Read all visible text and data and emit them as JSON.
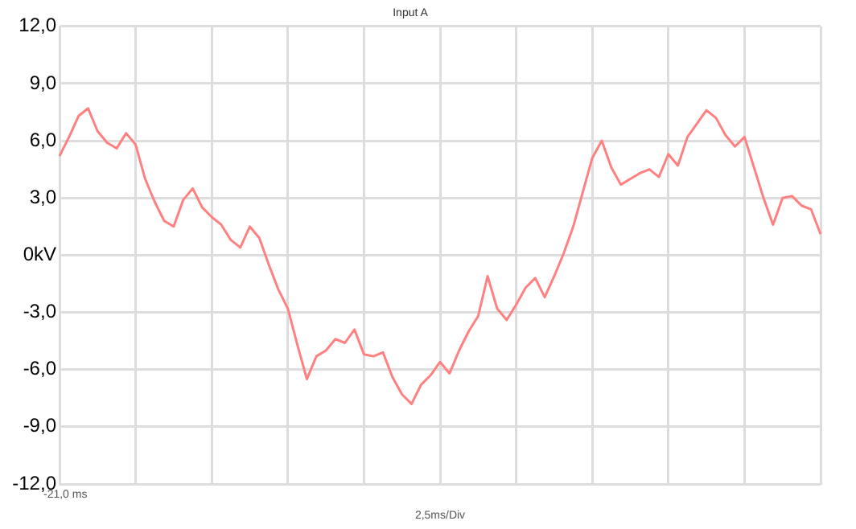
{
  "chart_data": {
    "type": "line",
    "title": "Input A",
    "xlabel": "2,5ms/Div",
    "categories": [
      null,
      null,
      null,
      null,
      null,
      null,
      null,
      null,
      null,
      null,
      null,
      null,
      null,
      null,
      null,
      null,
      null,
      null,
      null,
      null,
      null,
      null,
      null,
      null,
      null,
      null,
      null,
      null,
      null,
      null,
      null,
      null,
      null,
      null,
      null,
      null,
      null,
      null,
      null,
      null,
      null,
      null,
      null,
      null,
      null,
      null,
      null,
      null,
      null,
      null,
      null,
      null,
      null,
      null,
      null,
      null,
      null,
      null,
      null,
      null,
      null,
      null,
      null,
      null,
      null,
      null,
      null,
      null,
      null,
      null,
      null,
      null,
      null,
      null,
      null,
      null,
      null,
      null,
      null,
      null,
      null
    ],
    "series": [
      {
        "color": "#ff8080",
        "values": [
          5.2,
          6.2,
          7.3,
          7.7,
          6.5,
          5.9,
          5.6,
          6.4,
          5.8,
          4.0,
          2.8,
          1.8,
          1.5,
          2.9,
          3.5,
          2.5,
          2.0,
          1.6,
          0.8,
          0.4,
          1.5,
          0.9,
          -0.5,
          -1.8,
          -2.8,
          -4.7,
          -6.5,
          -5.3,
          -5.0,
          -4.4,
          -4.6,
          -3.9,
          -5.2,
          -5.3,
          -5.1,
          -6.4,
          -7.3,
          -7.8,
          -6.8,
          -6.3,
          -5.6,
          -6.2,
          -5.0,
          -4.0,
          -3.2,
          -1.1,
          -2.8,
          -3.4,
          -2.6,
          -1.7,
          -1.2,
          -2.2,
          -1.1,
          0.1,
          1.5,
          3.3,
          5.1,
          6.0,
          4.6,
          3.7,
          4.0,
          4.3,
          4.5,
          4.1,
          5.3,
          4.7,
          6.2,
          6.9,
          7.6,
          7.2,
          6.3,
          5.7,
          6.2,
          4.6,
          3.0,
          1.6,
          3.0,
          3.1,
          2.6,
          2.4,
          1.1
        ]
      }
    ],
    "ylim": [
      -12.0,
      12.0
    ],
    "yticks": [
      {
        "value": -12,
        "label": "-12,0"
      },
      {
        "value": -9,
        "label": "-9,0"
      },
      {
        "value": -6,
        "label": "-6,0"
      },
      {
        "value": -3,
        "label": "-3,0"
      },
      {
        "value": 0,
        "label": "0kV"
      },
      {
        "value": 3,
        "label": "3,0"
      },
      {
        "value": 6,
        "label": "6,0"
      },
      {
        "value": 9,
        "label": "9,0"
      },
      {
        "value": 12,
        "label": "12,0"
      }
    ],
    "annotations": [
      "-21,0 ms"
    ],
    "grid": true
  }
}
